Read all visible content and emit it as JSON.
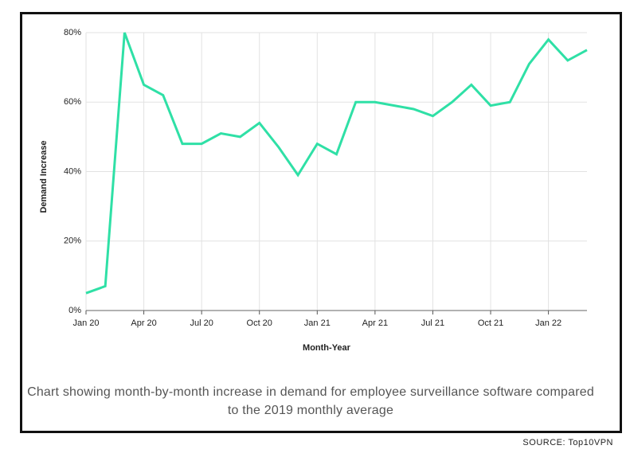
{
  "chart_data": {
    "type": "line",
    "x_label": "Month-Year",
    "y_label": "Demand Increase",
    "caption": "Chart showing month-by-month increase in demand for employee surveillance software compared to the 2019 monthly average",
    "source": "SOURCE: Top10VPN",
    "categories": [
      "Jan 20",
      null,
      null,
      "Apr 20",
      null,
      null,
      "Jul 20",
      null,
      null,
      "Oct 20",
      null,
      null,
      "Jan 21",
      null,
      null,
      "Apr 21",
      null,
      null,
      "Jul 21",
      null,
      null,
      "Oct 21",
      null,
      null,
      "Jan 22",
      null,
      null
    ],
    "series": [
      {
        "color": "#2fe0a6",
        "values": [
          5,
          7,
          80,
          65,
          62,
          48,
          48,
          51,
          50,
          54,
          47,
          39,
          48,
          45,
          60,
          60,
          59,
          58,
          56,
          60,
          65,
          59,
          60,
          71,
          78,
          72,
          75
        ]
      }
    ],
    "ylim": [
      0,
      80
    ],
    "yticks": [
      {
        "value": 0,
        "label": "0%"
      },
      {
        "value": 20,
        "label": "20%"
      },
      {
        "value": 40,
        "label": "40%"
      },
      {
        "value": 60,
        "label": "60%"
      },
      {
        "value": 80,
        "label": "80%"
      }
    ],
    "grid": true
  }
}
